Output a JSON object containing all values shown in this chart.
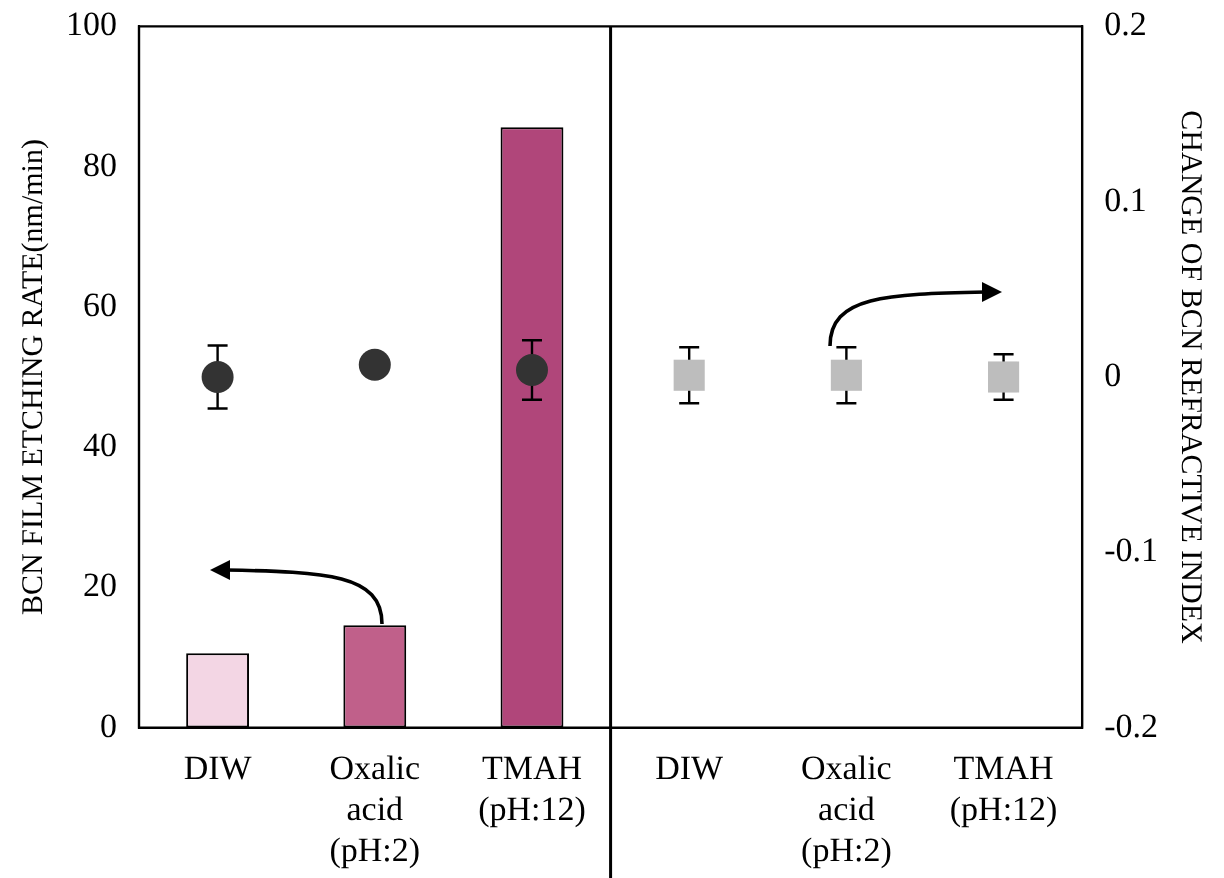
{
  "chart_data": {
    "type": "bar",
    "categories": [
      "DIW",
      "Oxalic acid (pH:2)",
      "TMAH (pH:12)",
      "DIW",
      "Oxalic acid (pH:2)",
      "TMAH (pH:12)"
    ],
    "series": [
      {
        "values": [
          10.6,
          14.6,
          85.6,
          0,
          0,
          0
        ],
        "colors": [
          "#f3d6e4",
          "#c0608a",
          "#b0467a",
          "#b0467a",
          "#b0467a",
          "#b0467a"
        ]
      },
      {
        "type": "scatter",
        "axis": "y2",
        "marker": "circle",
        "color": "#333333",
        "values": [
          0,
          0.007,
          0.004,
          null,
          null,
          null
        ],
        "errors": [
          0.018,
          null,
          0.017,
          null,
          null,
          null
        ]
      },
      {
        "type": "scatter",
        "axis": "y2",
        "marker": "square",
        "color": "#bdbdbd",
        "values": [
          null,
          null,
          null,
          0.001,
          0.001,
          0
        ],
        "errors": [
          null,
          null,
          null,
          0.016,
          0.016,
          0.013
        ]
      }
    ],
    "ylabel": "BCN FILM ETCHING RATE(nm/min)",
    "y2label": "CHANGE OF BCN REFRACTIVE INDEX",
    "ylim": [
      0,
      100
    ],
    "yticks": [
      0,
      20,
      40,
      60,
      80,
      100
    ],
    "y2lim": [
      -0.2,
      0.2
    ],
    "y2ticks": [
      -0.2,
      -0.1,
      0,
      0.1,
      0.2
    ],
    "grid": false,
    "legend": false
  }
}
